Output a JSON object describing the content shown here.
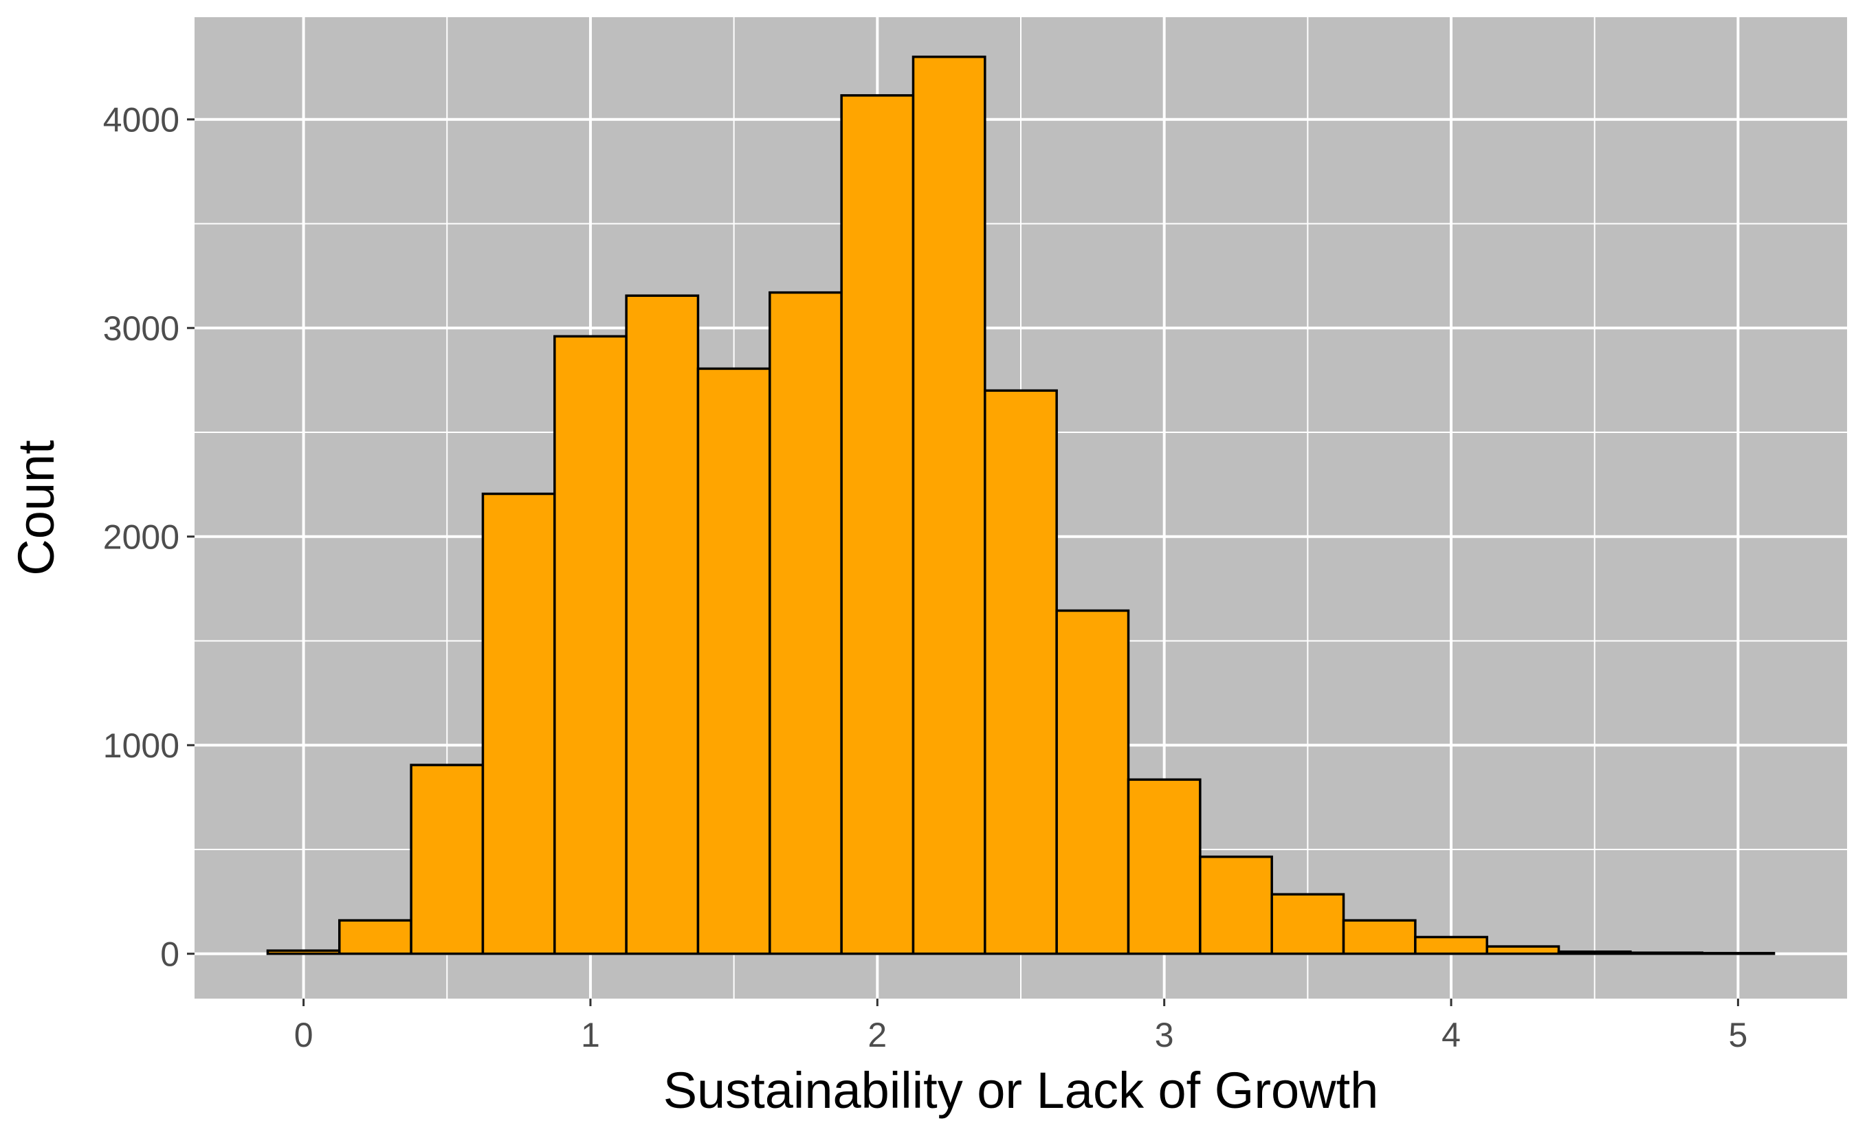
{
  "chart_data": {
    "type": "bar",
    "title": "",
    "xlabel": "Sustainability or Lack of Growth",
    "ylabel": "Count",
    "x_bin_centers": [
      0.0,
      0.25,
      0.5,
      0.75,
      1.0,
      1.25,
      1.5,
      1.75,
      2.0,
      2.25,
      2.5,
      2.75,
      3.0,
      3.25,
      3.5,
      3.75,
      4.0,
      4.25,
      4.5,
      4.75,
      5.0
    ],
    "bin_width": 0.25,
    "values": [
      15,
      160,
      905,
      2205,
      2960,
      3155,
      2805,
      3170,
      4115,
      4300,
      2700,
      1645,
      835,
      465,
      285,
      160,
      80,
      35,
      10,
      5,
      3
    ],
    "xlim": [
      -0.38,
      5.38
    ],
    "ylim": [
      -215,
      4490
    ],
    "x_ticks": [
      0,
      1,
      2,
      3,
      4,
      5
    ],
    "x_tick_labels": [
      "0",
      "1",
      "2",
      "3",
      "4",
      "5"
    ],
    "y_ticks": [
      0,
      1000,
      2000,
      3000,
      4000
    ],
    "y_tick_labels": [
      "0",
      "1000",
      "2000",
      "3000",
      "4000"
    ],
    "grid": true,
    "legend": "none",
    "colors": {
      "bar_fill": "#FFA500",
      "bar_outline": "#000000",
      "panel_background": "#BEBEBE",
      "grid_line": "#FFFFFF",
      "tick_label": "#4D4D4D",
      "axis_title": "#000000"
    }
  }
}
